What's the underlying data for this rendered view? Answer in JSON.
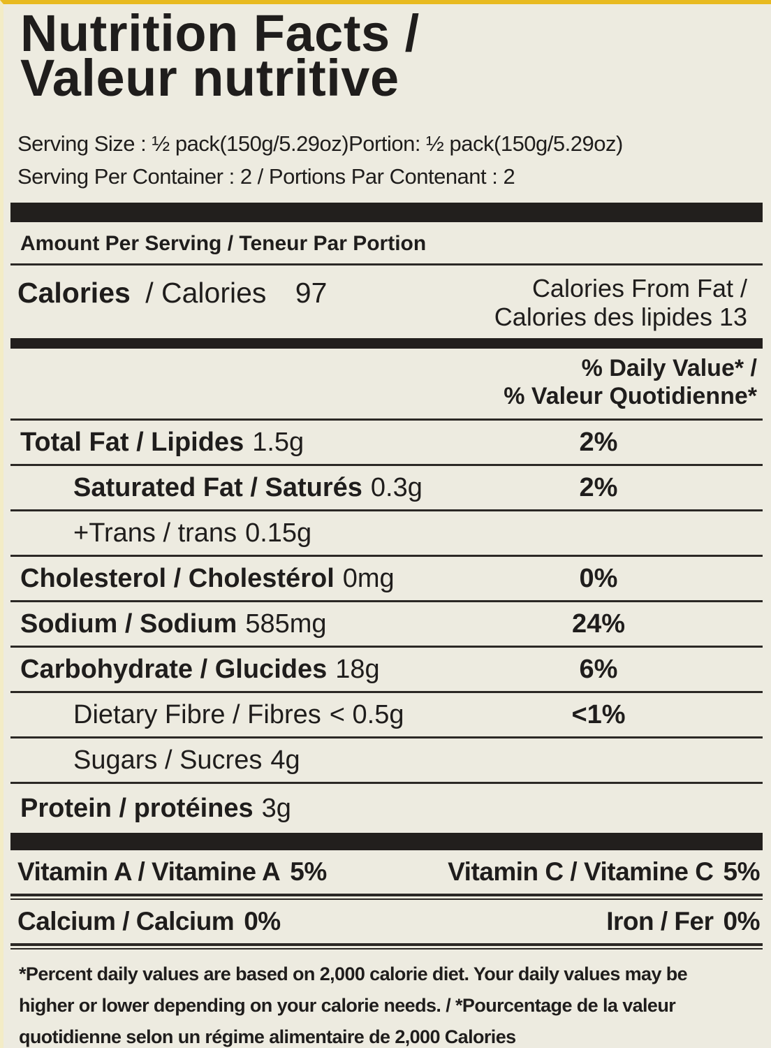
{
  "colors": {
    "background": "#edebe0",
    "text": "#1f1d1c",
    "rule": "#2b2825",
    "bar": "#221f1d",
    "accent_yellow": "#e8ba20",
    "edge_tint": "#f3ecc6"
  },
  "title": {
    "line1": "Nutrition Facts /",
    "line2": "Valeur nutritive"
  },
  "serving": {
    "size_line": "Serving Size : ½ pack(150g/5.29oz)Portion: ½ pack(150g/5.29oz)",
    "per_container_line": "Serving Per Container : 2 / Portions Par Contenant : 2"
  },
  "amount_per_serving": "Amount Per Serving / Teneur Par Portion",
  "calories": {
    "label_bold": "Calories",
    "label_rest": "/ Calories",
    "value": "97",
    "from_fat_line1": "Calories From Fat /",
    "from_fat_line2": "Calories des lipides 13"
  },
  "daily_value_header": {
    "line1": "% Daily Value* /",
    "line2": "% Valeur Quotidienne*"
  },
  "nutrients": [
    {
      "name": "Total Fat / Lipides",
      "amount": "1.5g",
      "dv": "2%",
      "indent": false,
      "name_bold": true
    },
    {
      "name": "Saturated Fat / Saturés",
      "amount": "0.3g",
      "dv": "2%",
      "indent": true,
      "name_bold": true
    },
    {
      "name": "+Trans / trans",
      "amount": "0.15g",
      "dv": "",
      "indent": true,
      "name_bold": false
    },
    {
      "name": "Cholesterol / Cholestérol",
      "amount": "0mg",
      "dv": "0%",
      "indent": false,
      "name_bold": true
    },
    {
      "name": "Sodium / Sodium",
      "amount": "585mg",
      "dv": "24%",
      "indent": false,
      "name_bold": true
    },
    {
      "name": "Carbohydrate / Glucides",
      "amount": "18g",
      "dv": "6%",
      "indent": false,
      "name_bold": true
    },
    {
      "name": "Dietary Fibre / Fibres",
      "amount": "< 0.5g",
      "dv": "<1%",
      "indent": true,
      "name_bold": false
    },
    {
      "name": "Sugars / Sucres",
      "amount": "4g",
      "dv": "",
      "indent": true,
      "name_bold": false
    },
    {
      "name": "Protein / protéines",
      "amount": "3g",
      "dv": "",
      "indent": false,
      "name_bold": true
    }
  ],
  "micronutrients": [
    {
      "left_label": "Vitamin A / Vitamine A",
      "left_value": "5%",
      "right_label": "Vitamin C / Vitamine C",
      "right_value": "5%"
    },
    {
      "left_label": "Calcium / Calcium",
      "left_value": "0%",
      "right_label": "Iron / Fer",
      "right_value": "0%"
    }
  ],
  "footnote_lines": [
    "*Percent daily values are based on 2,000 calorie diet. Your daily values may be",
    "higher or lower depending on your calorie needs. / *Pourcentage de la valeur",
    "quotidienne selon un régime alimentaire de 2,000 Calories"
  ]
}
